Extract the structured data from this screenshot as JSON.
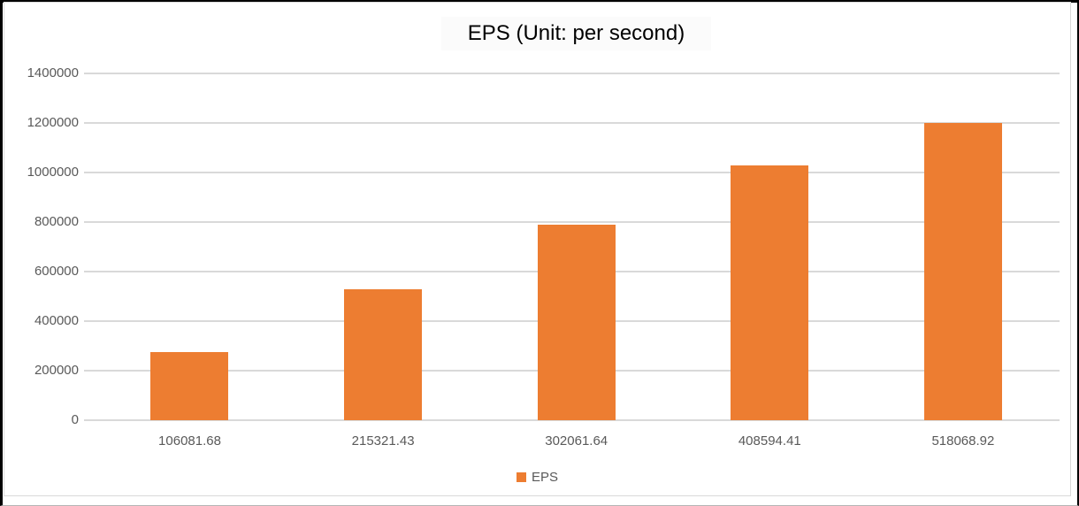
{
  "colors": {
    "bar": "#ED7D31",
    "gridline": "#D9D9D9",
    "axis_text": "#595959",
    "title_text": "#000000",
    "frame": "#D9D9D9",
    "outer_border": "#000000",
    "background": "#FFFFFF"
  },
  "chart_data": {
    "type": "bar",
    "title": "EPS (Unit: per second)",
    "categories": [
      "106081.68",
      "215321.43",
      "302061.64",
      "408594.41",
      "518068.92"
    ],
    "series": [
      {
        "name": "EPS",
        "color": "#ED7D31",
        "values": [
          275000,
          530000,
          790000,
          1030000,
          1200000
        ]
      }
    ],
    "xlabel": "",
    "ylabel": "",
    "ylim": [
      0,
      1400000
    ],
    "ytick_step": 200000,
    "ytick_labels": [
      "0",
      "200000",
      "400000",
      "600000",
      "800000",
      "1000000",
      "1200000",
      "1400000"
    ],
    "grid": true,
    "legend_position": "bottom"
  }
}
